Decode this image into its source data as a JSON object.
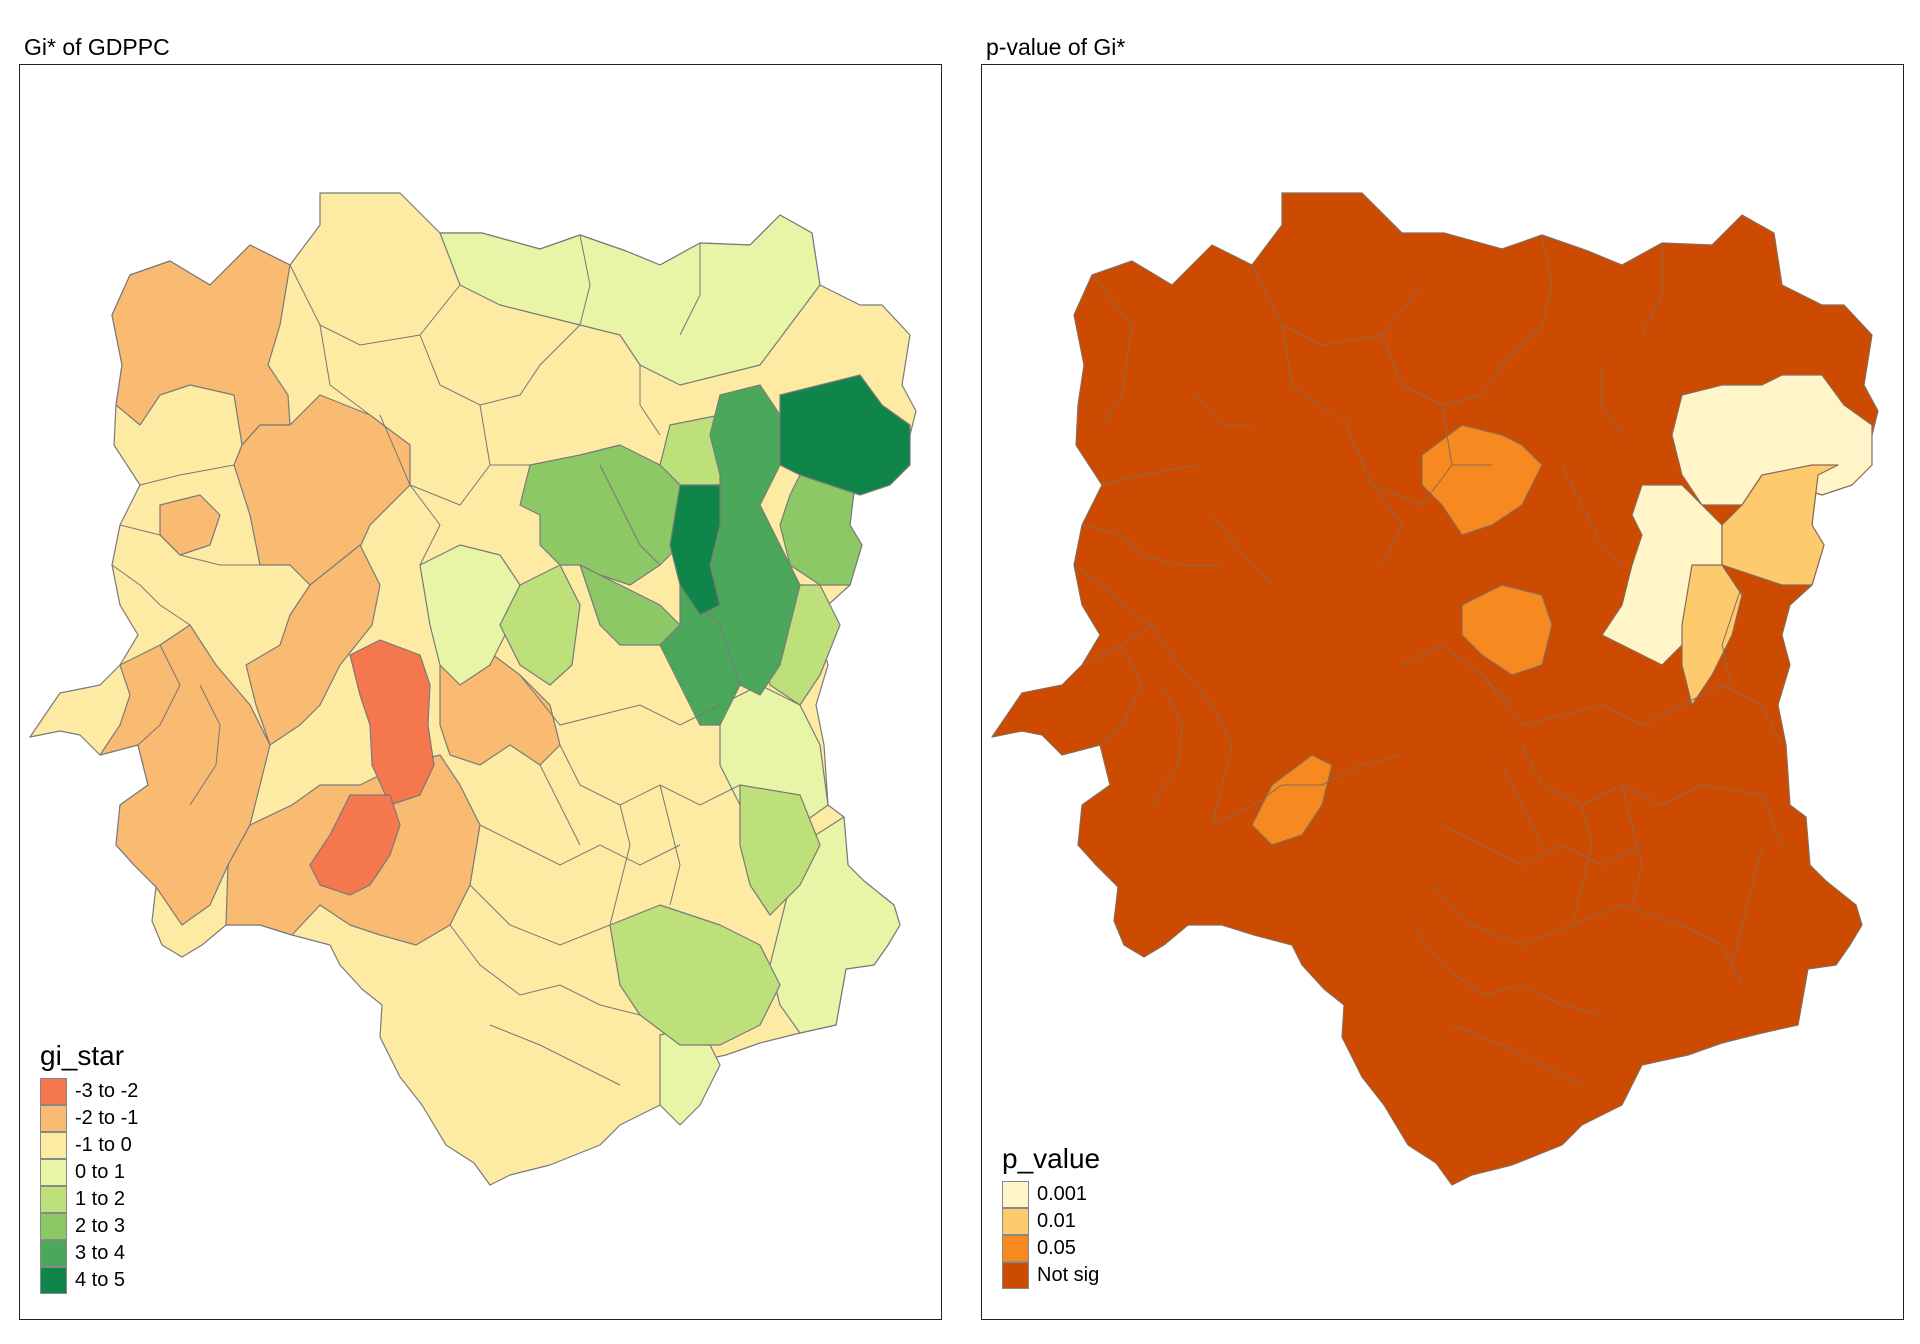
{
  "maps": [
    {
      "title": "Gi* of GDPPC",
      "legend": {
        "title": "gi_star",
        "classes": [
          {
            "label": "-3 to -2",
            "color": "#f4774d"
          },
          {
            "label": "-2 to -1",
            "color": "#f9ba72"
          },
          {
            "label": "-1 to 0",
            "color": "#fdeba4"
          },
          {
            "label": "0 to 1",
            "color": "#e9f5a6"
          },
          {
            "label": "1 to 2",
            "color": "#bde07a"
          },
          {
            "label": "2 to 3",
            "color": "#8cc866"
          },
          {
            "label": "3 to 4",
            "color": "#4ba85a"
          },
          {
            "label": "4 to 5",
            "color": "#0f854a"
          }
        ]
      }
    },
    {
      "title": "p-value of Gi*",
      "legend": {
        "title": "p_value",
        "classes": [
          {
            "label": "0.001",
            "color": "#fff5c8"
          },
          {
            "label": "0.01",
            "color": "#fdcb6e"
          },
          {
            "label": "0.05",
            "color": "#f6891f"
          },
          {
            "label": "Not sig",
            "color": "#cc4b00"
          }
        ]
      }
    }
  ]
}
